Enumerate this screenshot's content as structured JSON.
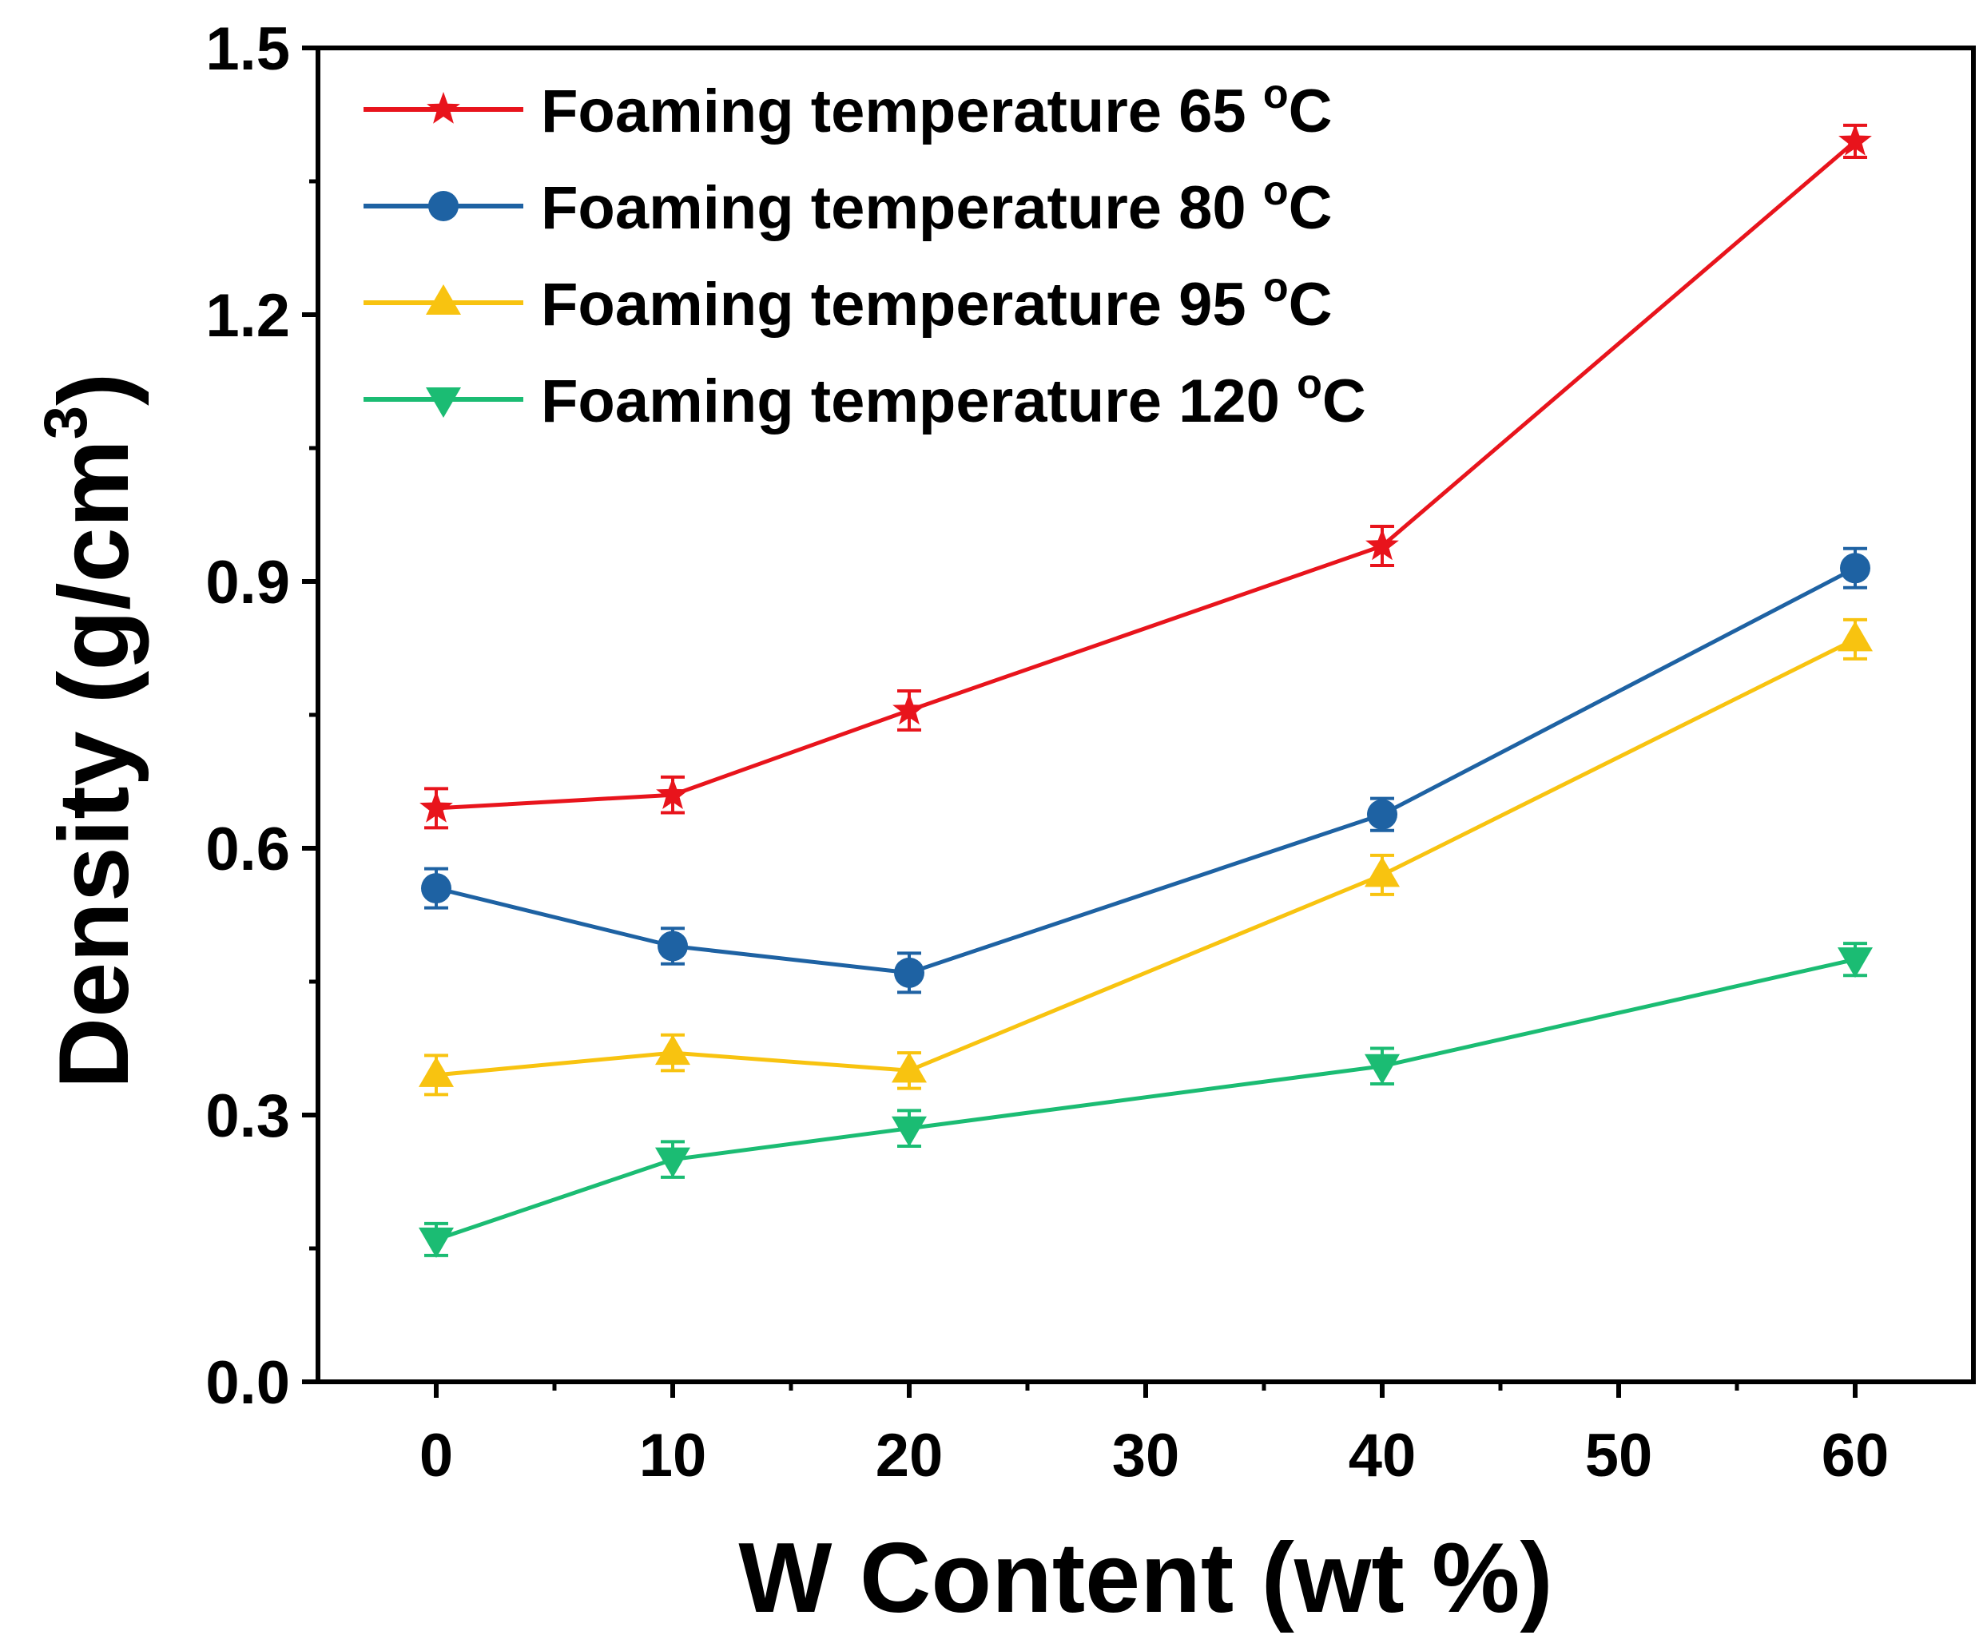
{
  "chart_data": {
    "type": "line",
    "title": "",
    "xlabel": "W Content (wt %)",
    "ylabel_main": "Density (g/cm",
    "ylabel_sup": "3",
    "ylabel_close": ")",
    "xlim": [
      -5,
      65
    ],
    "ylim": [
      0,
      1.5
    ],
    "xticks": [
      {
        "value": 0,
        "label": "0"
      },
      {
        "value": 10,
        "label": "10"
      },
      {
        "value": 20,
        "label": "20"
      },
      {
        "value": 30,
        "label": "30"
      },
      {
        "value": 40,
        "label": "40"
      },
      {
        "value": 50,
        "label": "50"
      },
      {
        "value": 60,
        "label": "60"
      }
    ],
    "yticks": [
      {
        "value": 0.0,
        "label": "0.0"
      },
      {
        "value": 0.3,
        "label": "0.3"
      },
      {
        "value": 0.6,
        "label": "0.6"
      },
      {
        "value": 0.9,
        "label": "0.9"
      },
      {
        "value": 1.2,
        "label": "1.2"
      },
      {
        "value": 1.5,
        "label": "1.5"
      }
    ],
    "x_minor": [
      5,
      15,
      25,
      35,
      45,
      55
    ],
    "y_minor": [
      0.15,
      0.45,
      0.75,
      1.05,
      1.35
    ],
    "grid": false,
    "legend_position": "top-left",
    "x": [
      0,
      10,
      20,
      40,
      60
    ],
    "series": [
      {
        "name": "Foaming temperature 65",
        "unit": "C",
        "degree_mark": "o",
        "marker": "star",
        "color": "#e8141c",
        "values": [
          0.645,
          0.66,
          0.755,
          0.94,
          1.395
        ],
        "errors": [
          0.022,
          0.02,
          0.022,
          0.022,
          0.018
        ]
      },
      {
        "name": "Foaming temperature 80",
        "unit": "C",
        "degree_mark": "o",
        "marker": "circle",
        "color": "#1e62a3",
        "values": [
          0.555,
          0.49,
          0.46,
          0.638,
          0.915
        ],
        "errors": [
          0.022,
          0.02,
          0.022,
          0.018,
          0.022
        ]
      },
      {
        "name": "Foaming temperature 95",
        "unit": "C",
        "degree_mark": "o",
        "marker": "triangle-up",
        "color": "#f8c310",
        "values": [
          0.345,
          0.37,
          0.35,
          0.57,
          0.835
        ],
        "errors": [
          0.022,
          0.02,
          0.02,
          0.022,
          0.022
        ]
      },
      {
        "name": "Foaming temperature 120",
        "unit": "C",
        "degree_mark": "o",
        "marker": "triangle-down",
        "color": "#1bbc73",
        "values": [
          0.16,
          0.25,
          0.285,
          0.355,
          0.475
        ],
        "errors": [
          0.018,
          0.02,
          0.02,
          0.02,
          0.018
        ]
      }
    ]
  }
}
